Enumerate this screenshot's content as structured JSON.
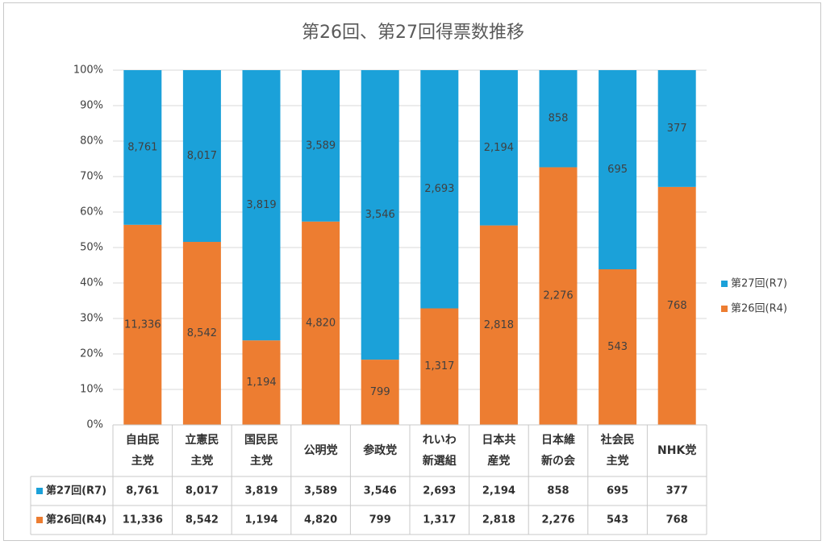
{
  "chart_data": {
    "type": "bar",
    "stacked": "percent",
    "title": "第26回、第27回得票数推移",
    "categories": [
      [
        "自由民",
        "主党"
      ],
      [
        "立憲民",
        "主党"
      ],
      [
        "国民民",
        "主党"
      ],
      [
        "公明党"
      ],
      [
        "参政党"
      ],
      [
        "れいわ",
        "新選組"
      ],
      [
        "日本共",
        "産党"
      ],
      [
        "日本維",
        "新の会"
      ],
      [
        "社会民",
        "主党"
      ],
      [
        "NHK党"
      ]
    ],
    "series": [
      {
        "name": "第26回(R4)",
        "color": "#ED7D31",
        "values": [
          11336,
          8542,
          1194,
          4820,
          799,
          1317,
          2818,
          2276,
          543,
          768
        ]
      },
      {
        "name": "第27回(R7)",
        "color": "#1BA1D9",
        "values": [
          8761,
          8017,
          3819,
          3589,
          3546,
          2693,
          2194,
          858,
          695,
          377
        ]
      }
    ],
    "value_labels": {
      "第26回(R4)": [
        "11,336",
        "8,542",
        "1,194",
        "4,820",
        "799",
        "1,317",
        "2,818",
        "2,276",
        "543",
        "768"
      ],
      "第27回(R7)": [
        "8,761",
        "8,017",
        "3,819",
        "3,589",
        "3,546",
        "2,693",
        "2,194",
        "858",
        "695",
        "377"
      ]
    },
    "y_ticks": [
      "0%",
      "10%",
      "20%",
      "30%",
      "40%",
      "50%",
      "60%",
      "70%",
      "80%",
      "90%",
      "100%"
    ],
    "ylim": [
      0,
      100
    ],
    "grid": true,
    "legend_position": "right",
    "legend_order": [
      "第27回(R7)",
      "第26回(R4)"
    ],
    "data_table": true
  }
}
